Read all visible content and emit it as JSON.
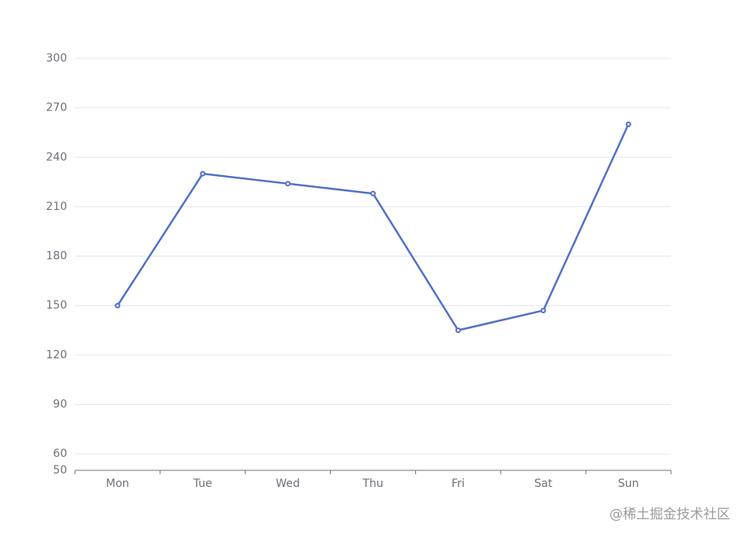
{
  "chart_data": {
    "type": "line",
    "categories": [
      "Mon",
      "Tue",
      "Wed",
      "Thu",
      "Fri",
      "Sat",
      "Sun"
    ],
    "series": [
      {
        "color": "#5470c6",
        "values": [
          150,
          230,
          224,
          218,
          135,
          147,
          260
        ]
      }
    ],
    "ylim": [
      50,
      300
    ],
    "yticks": [
      50,
      60,
      90,
      120,
      150,
      180,
      210,
      240,
      270,
      300
    ],
    "grid": true
  },
  "watermark": "@稀土掘金技术社区"
}
